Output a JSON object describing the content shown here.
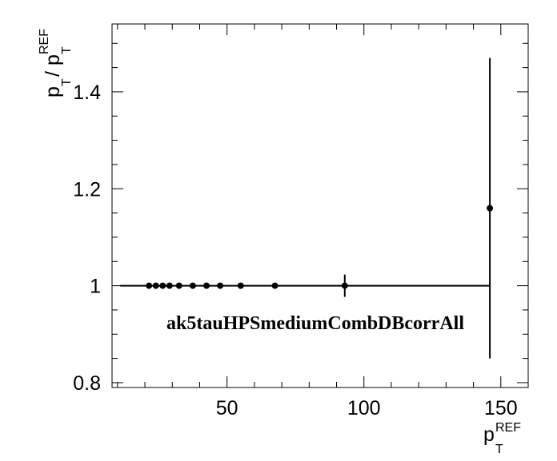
{
  "chart_data": {
    "type": "scatter",
    "title": "",
    "xlabel": {
      "base": "p",
      "subscript": "T",
      "superscript": "REF"
    },
    "ylabel": {
      "base_numerator": "p",
      "subscript_numerator": "T",
      "slash": "/",
      "base_denominator": "p",
      "subscript_denominator": "T",
      "superscript_denominator": "REF"
    },
    "xlim": [
      8,
      160
    ],
    "ylim": [
      0.79,
      1.54
    ],
    "x_ticks": [
      50,
      100,
      150
    ],
    "x_tick_labels": [
      "50",
      "100",
      "150"
    ],
    "y_ticks": [
      0.8,
      1.2,
      1.4
    ],
    "y_tick_labels": [
      "0.8",
      "1.2",
      "1.4"
    ],
    "y_extra_tick": 1.0,
    "y_extra_tick_label": "1",
    "grid": false,
    "legend": "none",
    "annotation": "ak5tauHPSmediumCombDBcorrAll",
    "series": [
      {
        "points": [
          {
            "x": 21.5,
            "y": 1.0,
            "xerr": 0.0,
            "yerr": 0.0
          },
          {
            "x": 24.0,
            "y": 1.0,
            "xerr": 0.0,
            "yerr": 0.0
          },
          {
            "x": 26.5,
            "y": 1.0,
            "xerr": 0.0,
            "yerr": 0.0
          },
          {
            "x": 29.0,
            "y": 1.0,
            "xerr": 0.0,
            "yerr": 0.0
          },
          {
            "x": 32.5,
            "y": 1.0,
            "xerr": 0.0,
            "yerr": 0.0
          },
          {
            "x": 37.5,
            "y": 1.0,
            "xerr": 0.0,
            "yerr": 0.0
          },
          {
            "x": 42.5,
            "y": 1.0,
            "xerr": 0.0,
            "yerr": 0.0
          },
          {
            "x": 47.5,
            "y": 1.0,
            "xerr": 0.0,
            "yerr": 0.0
          },
          {
            "x": 55.0,
            "y": 1.0,
            "xerr": 0.0,
            "yerr": 0.0
          },
          {
            "x": 67.5,
            "y": 1.0,
            "xerr": 0.0,
            "yerr": 0.0
          },
          {
            "x": 93.0,
            "y": 1.0,
            "xerr": 0.0,
            "yerr": 0.023
          },
          {
            "x": 146.0,
            "y": 1.16,
            "xerr": 0.0,
            "yerr": 0.31
          }
        ],
        "horizontal_line": {
          "y": 1.0,
          "x_from": 11.0,
          "x_to": 146.0
        },
        "color": "#000000"
      }
    ]
  }
}
